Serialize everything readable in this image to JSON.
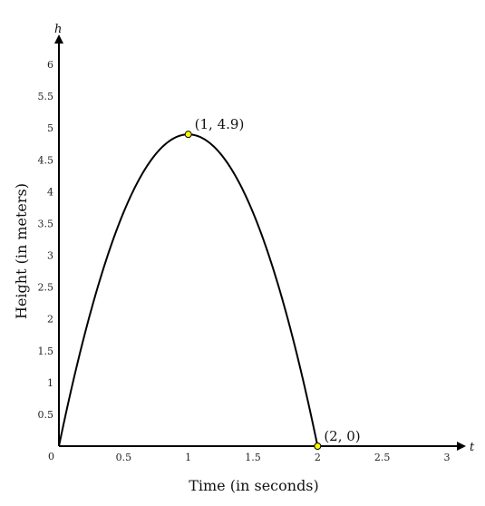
{
  "chart_data": {
    "type": "line",
    "xlabel": "Time (in seconds)",
    "ylabel": "Height (in meters)",
    "x_axis_var": "t",
    "y_axis_var": "h",
    "xlim": [
      0,
      3
    ],
    "ylim": [
      0,
      6
    ],
    "x_ticks": [
      "0.5",
      "1",
      "1.5",
      "2",
      "2.5",
      "3"
    ],
    "y_ticks": [
      "0.5",
      "1",
      "1.5",
      "2",
      "2.5",
      "3",
      "3.5",
      "4",
      "4.5",
      "5",
      "5.5",
      "6"
    ],
    "origin_label": "0",
    "series": [
      {
        "equation": "h = 9.8t - 4.9t^2",
        "x": [
          0,
          0.1,
          0.2,
          0.3,
          0.4,
          0.5,
          0.6,
          0.7,
          0.8,
          0.9,
          1.0,
          1.1,
          1.2,
          1.3,
          1.4,
          1.5,
          1.6,
          1.7,
          1.8,
          1.9,
          2.0
        ],
        "y": [
          0,
          0.931,
          1.764,
          2.499,
          3.136,
          3.675,
          4.116,
          4.459,
          4.704,
          4.851,
          4.9,
          4.851,
          4.704,
          4.459,
          4.116,
          3.675,
          3.136,
          2.499,
          1.764,
          0.931,
          0
        ],
        "color": "#000000"
      }
    ],
    "points": [
      {
        "x": 1,
        "y": 4.9,
        "label": "(1, 4.9)",
        "color": "#ffff00"
      },
      {
        "x": 2,
        "y": 0,
        "label": "(2, 0)",
        "color": "#ffff00"
      }
    ]
  }
}
